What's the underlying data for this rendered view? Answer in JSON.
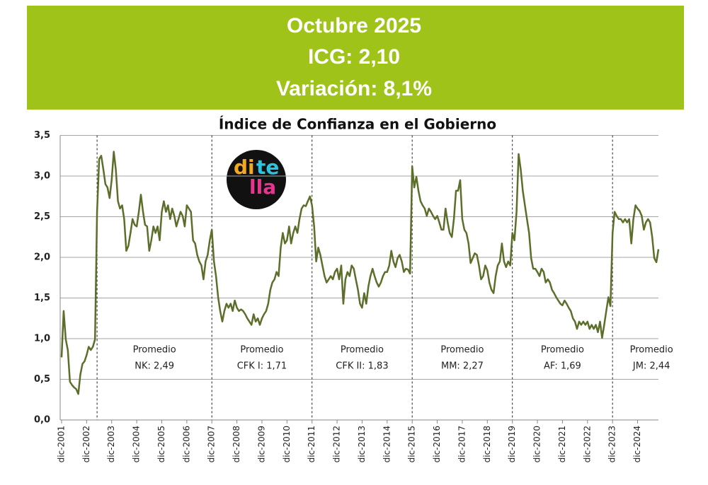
{
  "header": {
    "lines": [
      "Octubre 2025",
      "ICG: 2,10",
      "Variación: 8,1%"
    ]
  },
  "logo": [
    "di",
    "te",
    "lla"
  ],
  "chart_data": {
    "type": "line",
    "title": "Índice de Confianza en el Gobierno",
    "categories": [
      "dic-2001",
      null,
      null,
      null,
      null,
      null,
      null,
      null,
      null,
      null,
      null,
      null,
      "dic-2002",
      null,
      null,
      null,
      null,
      null,
      null,
      null,
      null,
      null,
      null,
      null,
      "dic-2003",
      null,
      null,
      null,
      null,
      null,
      null,
      null,
      null,
      null,
      null,
      null,
      "dic-2004",
      null,
      null,
      null,
      null,
      null,
      null,
      null,
      null,
      null,
      null,
      null,
      "dic-2005",
      null,
      null,
      null,
      null,
      null,
      null,
      null,
      null,
      null,
      null,
      null,
      "dic-2006",
      null,
      null,
      null,
      null,
      null,
      null,
      null,
      null,
      null,
      null,
      null,
      "dic-2007",
      null,
      null,
      null,
      null,
      null,
      null,
      null,
      null,
      null,
      null,
      null,
      "dic-2008",
      null,
      null,
      null,
      null,
      null,
      null,
      null,
      null,
      null,
      null,
      null,
      "dic-2009",
      null,
      null,
      null,
      null,
      null,
      null,
      null,
      null,
      null,
      null,
      null,
      "dic-2010",
      null,
      null,
      null,
      null,
      null,
      null,
      null,
      null,
      null,
      null,
      null,
      "dic-2011",
      null,
      null,
      null,
      null,
      null,
      null,
      null,
      null,
      null,
      null,
      null,
      "dic-2012",
      null,
      null,
      null,
      null,
      null,
      null,
      null,
      null,
      null,
      null,
      null,
      "dic-2013",
      null,
      null,
      null,
      null,
      null,
      null,
      null,
      null,
      null,
      null,
      null,
      "dic-2014",
      null,
      null,
      null,
      null,
      null,
      null,
      null,
      null,
      null,
      null,
      null,
      "dic-2015",
      null,
      null,
      null,
      null,
      null,
      null,
      null,
      null,
      null,
      null,
      null,
      "dic-2016",
      null,
      null,
      null,
      null,
      null,
      null,
      null,
      null,
      null,
      null,
      null,
      "dic-2017",
      null,
      null,
      null,
      null,
      null,
      null,
      null,
      null,
      null,
      null,
      null,
      "dic-2018",
      null,
      null,
      null,
      null,
      null,
      null,
      null,
      null,
      null,
      null,
      null,
      "dic-2019",
      null,
      null,
      null,
      null,
      null,
      null,
      null,
      null,
      null,
      null,
      null,
      "dic-2020",
      null,
      null,
      null,
      null,
      null,
      null,
      null,
      null,
      null,
      null,
      null,
      "dic-2021",
      null,
      null,
      null,
      null,
      null,
      null,
      null,
      null,
      null,
      null,
      null,
      "dic-2022",
      null,
      null,
      null,
      null,
      null,
      null,
      null,
      null,
      null,
      null,
      null,
      "dic-2023",
      null,
      null,
      null,
      null,
      null,
      null,
      null,
      null,
      null,
      null,
      null,
      "dic-2024",
      null,
      null,
      null,
      null,
      null,
      null,
      null,
      null,
      null,
      null
    ],
    "series": [
      {
        "name": "ICG",
        "color": "#5b6e2a",
        "values": [
          0.77,
          1.34,
          0.99,
          0.86,
          0.47,
          0.43,
          0.4,
          0.38,
          0.32,
          0.56,
          0.69,
          0.72,
          0.8,
          0.9,
          0.86,
          0.9,
          0.99,
          2.56,
          3.21,
          3.25,
          3.08,
          2.9,
          2.86,
          2.73,
          2.95,
          3.3,
          3.08,
          2.69,
          2.6,
          2.64,
          2.47,
          2.08,
          2.14,
          2.3,
          2.47,
          2.4,
          2.38,
          2.56,
          2.77,
          2.56,
          2.4,
          2.38,
          2.08,
          2.21,
          2.38,
          2.3,
          2.38,
          2.21,
          2.56,
          2.69,
          2.56,
          2.64,
          2.47,
          2.6,
          2.51,
          2.38,
          2.47,
          2.56,
          2.51,
          2.38,
          2.64,
          2.6,
          2.56,
          2.21,
          2.17,
          2.03,
          1.95,
          1.9,
          1.73,
          1.95,
          2.03,
          2.21,
          2.34,
          1.95,
          1.77,
          1.51,
          1.34,
          1.21,
          1.34,
          1.43,
          1.38,
          1.43,
          1.34,
          1.47,
          1.38,
          1.34,
          1.36,
          1.34,
          1.3,
          1.25,
          1.21,
          1.17,
          1.3,
          1.21,
          1.25,
          1.17,
          1.25,
          1.3,
          1.34,
          1.43,
          1.6,
          1.69,
          1.73,
          1.82,
          1.77,
          2.12,
          2.3,
          2.17,
          2.21,
          2.38,
          2.17,
          2.3,
          2.38,
          2.3,
          2.47,
          2.6,
          2.64,
          2.63,
          2.69,
          2.75,
          2.64,
          2.38,
          1.95,
          2.12,
          2.03,
          1.9,
          1.77,
          1.69,
          1.73,
          1.77,
          1.73,
          1.82,
          1.86,
          1.73,
          1.9,
          1.43,
          1.73,
          1.82,
          1.77,
          1.9,
          1.86,
          1.73,
          1.6,
          1.43,
          1.38,
          1.56,
          1.43,
          1.64,
          1.77,
          1.86,
          1.77,
          1.69,
          1.64,
          1.69,
          1.77,
          1.82,
          1.82,
          1.9,
          2.08,
          1.95,
          1.88,
          1.99,
          2.03,
          1.95,
          1.82,
          1.86,
          1.85,
          1.8,
          3.12,
          2.86,
          2.99,
          2.82,
          2.69,
          2.64,
          2.6,
          2.51,
          2.6,
          2.56,
          2.51,
          2.47,
          2.51,
          2.43,
          2.34,
          2.34,
          2.6,
          2.43,
          2.3,
          2.25,
          2.47,
          2.82,
          2.82,
          2.95,
          2.47,
          2.34,
          2.3,
          2.17,
          1.93,
          1.99,
          2.05,
          2.03,
          1.9,
          1.73,
          1.77,
          1.9,
          1.84,
          1.69,
          1.6,
          1.56,
          1.77,
          1.9,
          1.95,
          2.17,
          1.95,
          1.88,
          1.95,
          1.9,
          2.3,
          2.21,
          2.56,
          3.27,
          3.08,
          2.82,
          2.64,
          2.47,
          2.3,
          1.99,
          1.86,
          1.86,
          1.82,
          1.77,
          1.86,
          1.82,
          1.69,
          1.73,
          1.69,
          1.6,
          1.56,
          1.51,
          1.47,
          1.43,
          1.41,
          1.47,
          1.43,
          1.38,
          1.34,
          1.25,
          1.21,
          1.12,
          1.21,
          1.17,
          1.21,
          1.17,
          1.21,
          1.12,
          1.17,
          1.12,
          1.17,
          1.08,
          1.21,
          1.01,
          1.17,
          1.34,
          1.51,
          1.4,
          2.3,
          2.56,
          2.51,
          2.47,
          2.47,
          2.43,
          2.47,
          2.43,
          2.47,
          2.17,
          2.47,
          2.64,
          2.6,
          2.57,
          2.51,
          2.34,
          2.43,
          2.47,
          2.43,
          2.25,
          1.99,
          1.94,
          2.1
        ]
      }
    ],
    "ylim": [
      0,
      3.5
    ],
    "yticks": [
      {
        "value": 0,
        "label": "0,0"
      },
      {
        "value": 0.5,
        "label": "0,5"
      },
      {
        "value": 1,
        "label": "1,0"
      },
      {
        "value": 1.5,
        "label": "1,5"
      },
      {
        "value": 2,
        "label": "2,0"
      },
      {
        "value": 2.5,
        "label": "2,5"
      },
      {
        "value": 3,
        "label": "3,0"
      },
      {
        "value": 3.5,
        "label": "3,5"
      }
    ],
    "grid": true,
    "periods": [
      {
        "start": 17,
        "heading": "Promedio",
        "label": "NK: 2,49"
      },
      {
        "start": 72,
        "heading": "Promedio",
        "label": "CFK I: 1,71"
      },
      {
        "start": 120,
        "heading": "Promedio",
        "label": "CFK II: 1,83"
      },
      {
        "start": 168,
        "heading": "Promedio",
        "label": "MM: 2,27"
      },
      {
        "start": 216,
        "heading": "Promedio",
        "label": "AF: 1,69"
      },
      {
        "start": 264,
        "heading": "Promedio",
        "label": "JM: 2,44"
      }
    ]
  }
}
